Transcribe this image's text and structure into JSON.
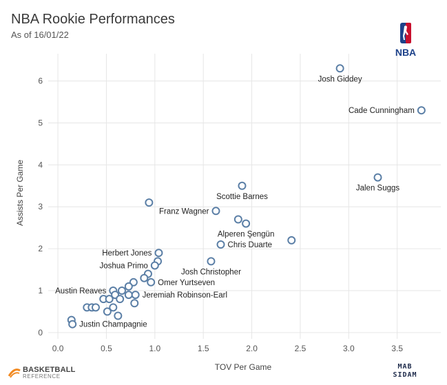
{
  "header": {
    "title": "NBA Rookie Performances",
    "subtitle": "As of 16/01/22"
  },
  "logos": {
    "league_text": "NBA",
    "source_line1": "BASKETBALL",
    "source_line2": "REFERENCE",
    "author_line1": "MAB",
    "author_line2": "SIDAM"
  },
  "colors": {
    "marker_stroke": "#5b7fa6",
    "grid": "#e6e6e6",
    "nba_blue": "#1d428a",
    "nba_red": "#c8102e",
    "bbref_orange": "#f28a21"
  },
  "chart_data": {
    "type": "scatter",
    "title": "NBA Rookie Performances",
    "subtitle": "As of 16/01/22",
    "xlabel": "TOV Per Game",
    "ylabel": "Assists Per Game",
    "xlim": [
      -0.1,
      3.95
    ],
    "ylim": [
      -0.15,
      6.65
    ],
    "xticks": [
      0,
      0.5,
      1,
      1.5,
      2,
      2.5,
      3,
      3.5
    ],
    "xtick_labels": [
      "0.0",
      "0.5",
      "1.0",
      "1.5",
      "2.0",
      "2.5",
      "3.0",
      "3.5"
    ],
    "yticks": [
      0,
      1,
      2,
      3,
      4,
      5,
      6
    ],
    "ytick_labels": [
      "0",
      "1",
      "2",
      "3",
      "4",
      "5",
      "6"
    ],
    "grid": true,
    "legend": "none",
    "points": [
      {
        "x": 2.91,
        "y": 6.3
      },
      {
        "x": 3.75,
        "y": 5.3
      },
      {
        "x": 3.3,
        "y": 3.7
      },
      {
        "x": 1.9,
        "y": 3.5
      },
      {
        "x": 0.94,
        "y": 3.1
      },
      {
        "x": 1.63,
        "y": 2.9
      },
      {
        "x": 1.86,
        "y": 2.7
      },
      {
        "x": 1.94,
        "y": 2.6
      },
      {
        "x": 2.41,
        "y": 2.2
      },
      {
        "x": 1.68,
        "y": 2.1
      },
      {
        "x": 1.04,
        "y": 1.9
      },
      {
        "x": 1.03,
        "y": 1.7
      },
      {
        "x": 1.58,
        "y": 1.7
      },
      {
        "x": 1.0,
        "y": 1.6
      },
      {
        "x": 0.93,
        "y": 1.4
      },
      {
        "x": 0.89,
        "y": 1.3
      },
      {
        "x": 0.78,
        "y": 1.2
      },
      {
        "x": 0.96,
        "y": 1.2
      },
      {
        "x": 0.73,
        "y": 1.1
      },
      {
        "x": 0.57,
        "y": 1.0
      },
      {
        "x": 0.66,
        "y": 1.0
      },
      {
        "x": 0.59,
        "y": 0.9
      },
      {
        "x": 0.73,
        "y": 0.9
      },
      {
        "x": 0.8,
        "y": 0.9
      },
      {
        "x": 0.47,
        "y": 0.8
      },
      {
        "x": 0.53,
        "y": 0.8
      },
      {
        "x": 0.64,
        "y": 0.8
      },
      {
        "x": 0.79,
        "y": 0.7
      },
      {
        "x": 0.3,
        "y": 0.6
      },
      {
        "x": 0.35,
        "y": 0.6
      },
      {
        "x": 0.39,
        "y": 0.6
      },
      {
        "x": 0.57,
        "y": 0.6
      },
      {
        "x": 0.51,
        "y": 0.5
      },
      {
        "x": 0.62,
        "y": 0.4
      },
      {
        "x": 0.14,
        "y": 0.3
      },
      {
        "x": 0.15,
        "y": 0.2
      }
    ],
    "annotations": [
      {
        "text": "Josh Giddey",
        "x": 2.91,
        "y": 6.3,
        "anchor": "middle",
        "pos": "below"
      },
      {
        "text": "Cade Cunningham",
        "x": 3.75,
        "y": 5.3,
        "anchor": "end",
        "pos": "left"
      },
      {
        "text": "Jalen Suggs",
        "x": 3.3,
        "y": 3.7,
        "anchor": "middle",
        "pos": "below"
      },
      {
        "text": "Scottie Barnes",
        "x": 1.9,
        "y": 3.5,
        "anchor": "middle",
        "pos": "below"
      },
      {
        "text": "Franz Wagner",
        "x": 1.63,
        "y": 2.9,
        "anchor": "end",
        "pos": "left"
      },
      {
        "text": "Alperen Şengün",
        "x": 1.94,
        "y": 2.6,
        "anchor": "middle",
        "pos": "below"
      },
      {
        "text": "Chris Duarte",
        "x": 1.68,
        "y": 2.1,
        "anchor": "start",
        "pos": "right"
      },
      {
        "text": "Herbert Jones",
        "x": 1.04,
        "y": 1.9,
        "anchor": "end",
        "pos": "left"
      },
      {
        "text": "Josh Christopher",
        "x": 1.58,
        "y": 1.7,
        "anchor": "middle",
        "pos": "below"
      },
      {
        "text": "Joshua Primo",
        "x": 1.0,
        "y": 1.6,
        "anchor": "end",
        "pos": "left"
      },
      {
        "text": "Omer Yurtseven",
        "x": 0.96,
        "y": 1.2,
        "anchor": "start",
        "pos": "right"
      },
      {
        "text": "Austin Reaves",
        "x": 0.57,
        "y": 1.0,
        "anchor": "end",
        "pos": "left"
      },
      {
        "text": "Jeremiah Robinson-Earl",
        "x": 0.8,
        "y": 0.9,
        "anchor": "start",
        "pos": "right"
      },
      {
        "text": "Justin Champagnie",
        "x": 0.15,
        "y": 0.2,
        "anchor": "start",
        "pos": "right"
      }
    ]
  }
}
